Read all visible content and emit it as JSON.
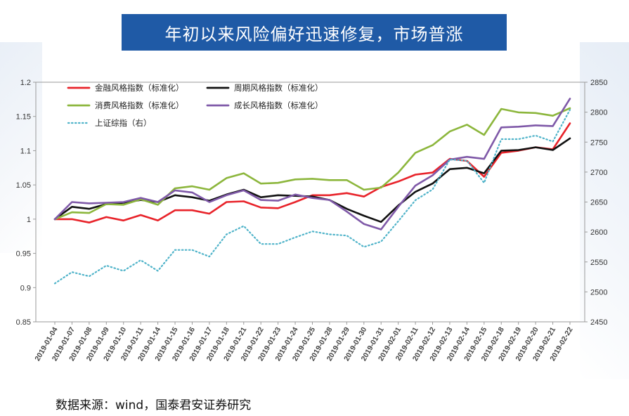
{
  "page": {
    "title": "年初以来风险偏好迅速修复，市场普涨",
    "source": "数据来源：wind，国泰君安证券研究"
  },
  "chart_data": {
    "type": "line",
    "title": "年初以来风险偏好迅速修复，市场普涨",
    "categories": [
      "2019-01-04",
      "2019-01-07",
      "2019-01-08",
      "2019-01-09",
      "2019-01-10",
      "2019-01-11",
      "2019-01-14",
      "2019-01-15",
      "2019-01-16",
      "2019-01-17",
      "2019-01-18",
      "2019-01-21",
      "2019-01-22",
      "2019-01-23",
      "2019-01-24",
      "2019-01-25",
      "2019-01-28",
      "2019-01-29",
      "2019-01-30",
      "2019-01-31",
      "2019-02-01",
      "2019-02-11",
      "2019-02-12",
      "2019-02-13",
      "2019-02-14",
      "2019-02-15",
      "2019-02-18",
      "2019-02-19",
      "2019-02-20",
      "2019-02-21",
      "2019-02-22"
    ],
    "y_left": {
      "min": 0.85,
      "max": 1.2,
      "ticks": [
        "0.85",
        "0.9",
        "0.95",
        "1",
        "1.05",
        "1.1",
        "1.15",
        "1.2"
      ]
    },
    "y_right": {
      "min": 2450,
      "max": 2850,
      "ticks": [
        "2450",
        "2500",
        "2550",
        "2600",
        "2650",
        "2700",
        "2750",
        "2800",
        "2850"
      ]
    },
    "legend_position": "top-left",
    "series": [
      {
        "name": "金融风格指数（标准化）",
        "color": "#e8232a",
        "axis": "left",
        "dashed": false,
        "values": [
          1.0,
          1.0,
          0.995,
          1.003,
          0.998,
          1.006,
          0.998,
          1.013,
          1.013,
          1.008,
          1.025,
          1.026,
          1.017,
          1.016,
          1.025,
          1.035,
          1.035,
          1.038,
          1.033,
          1.047,
          1.055,
          1.065,
          1.068,
          1.088,
          1.085,
          1.062,
          1.097,
          1.1,
          1.105,
          1.102,
          1.14
        ]
      },
      {
        "name": "周期风格指数（标准化）",
        "color": "#111111",
        "axis": "left",
        "dashed": false,
        "values": [
          1.0,
          1.018,
          1.015,
          1.022,
          1.024,
          1.028,
          1.025,
          1.035,
          1.032,
          1.027,
          1.036,
          1.043,
          1.032,
          1.035,
          1.034,
          1.033,
          1.028,
          1.015,
          1.005,
          0.996,
          1.02,
          1.04,
          1.052,
          1.073,
          1.075,
          1.067,
          1.1,
          1.101,
          1.105,
          1.101,
          1.118
        ]
      },
      {
        "name": "消费风格指数（标准化）",
        "color": "#8cb63c",
        "axis": "left",
        "dashed": false,
        "values": [
          1.0,
          1.01,
          1.009,
          1.022,
          1.021,
          1.029,
          1.021,
          1.045,
          1.048,
          1.043,
          1.06,
          1.067,
          1.052,
          1.053,
          1.058,
          1.059,
          1.057,
          1.057,
          1.043,
          1.046,
          1.068,
          1.097,
          1.108,
          1.128,
          1.138,
          1.123,
          1.161,
          1.156,
          1.155,
          1.151,
          1.162
        ]
      },
      {
        "name": "成长风格指数（标准化）",
        "color": "#7f59a8",
        "axis": "left",
        "dashed": false,
        "values": [
          1.0,
          1.025,
          1.023,
          1.024,
          1.025,
          1.031,
          1.025,
          1.042,
          1.039,
          1.025,
          1.035,
          1.042,
          1.028,
          1.027,
          1.036,
          1.031,
          1.028,
          1.011,
          0.993,
          0.985,
          1.018,
          1.049,
          1.064,
          1.087,
          1.091,
          1.088,
          1.134,
          1.135,
          1.137,
          1.136,
          1.176
        ]
      },
      {
        "name": "上证综指（右）",
        "color": "#4fb3c9",
        "axis": "right",
        "dashed": true,
        "values": [
          2514,
          2533,
          2526,
          2544,
          2535,
          2553,
          2535,
          2570,
          2570,
          2559,
          2596,
          2610,
          2580,
          2580,
          2591,
          2601,
          2596,
          2594,
          2575,
          2584,
          2618,
          2653,
          2671,
          2721,
          2719,
          2682,
          2755,
          2755,
          2761,
          2751,
          2804
        ]
      }
    ]
  }
}
